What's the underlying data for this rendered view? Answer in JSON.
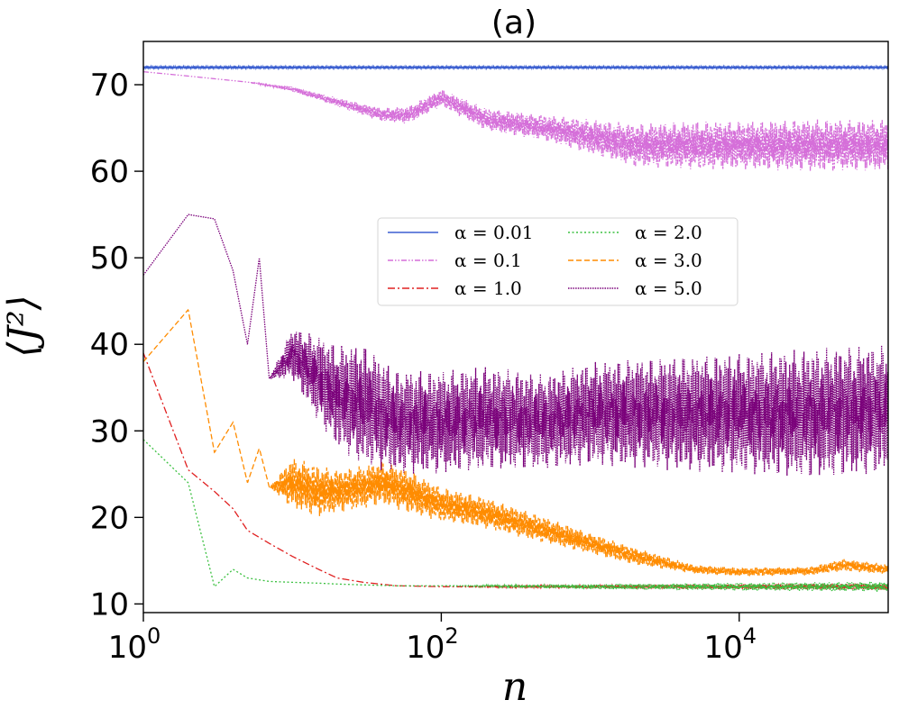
{
  "chart_data": {
    "type": "line",
    "title": "(a)",
    "xlabel": "n",
    "ylabel": "⟨J²⟩",
    "xscale": "log",
    "xlim": [
      1,
      100000
    ],
    "ylim": [
      9,
      75
    ],
    "x_ticks": [
      {
        "value": 1,
        "base": "10",
        "exp": "0"
      },
      {
        "value": 100,
        "base": "10",
        "exp": "2"
      },
      {
        "value": 10000,
        "base": "10",
        "exp": "4"
      }
    ],
    "y_ticks": [
      10,
      20,
      30,
      40,
      50,
      60,
      70
    ],
    "legend_position": "center",
    "series": [
      {
        "name": "α = 0.01",
        "color": "#3b5fd0",
        "style": "solid",
        "x": [
          1,
          100000
        ],
        "y": [
          72.0,
          72.0
        ],
        "band": [
          0.1,
          0.1
        ]
      },
      {
        "name": "α = 0.1",
        "color": "#d56fd9",
        "style": "dashdotdot",
        "x": [
          1,
          2,
          5,
          10,
          20,
          40,
          60,
          100,
          200,
          500,
          1000,
          2000,
          5000,
          10000,
          30000,
          100000
        ],
        "y": [
          71.5,
          71,
          70.3,
          69.5,
          68,
          66.5,
          66.5,
          68.5,
          66,
          65,
          64,
          63,
          63,
          63,
          63,
          63
        ],
        "band": [
          0,
          0,
          0,
          0.3,
          0.5,
          0.8,
          1,
          1,
          1.3,
          1.5,
          2,
          2.5,
          2.8,
          2.8,
          3,
          3
        ]
      },
      {
        "name": "α = 1.0",
        "color": "#e02020",
        "style": "dashdot",
        "x": [
          1,
          2,
          3,
          4,
          5,
          7,
          10,
          15,
          20,
          30,
          50,
          100,
          1000,
          100000
        ],
        "y": [
          39,
          25.5,
          23,
          21,
          18.5,
          17,
          15.5,
          14,
          13,
          12.5,
          12.1,
          12,
          12,
          12
        ],
        "band": [
          0,
          0,
          0,
          0,
          0,
          0,
          0,
          0,
          0,
          0,
          0,
          0,
          0.2,
          0.4
        ]
      },
      {
        "name": "α = 2.0",
        "color": "#3bc040",
        "style": "dotted",
        "x": [
          1,
          2,
          3,
          4,
          5,
          7,
          10,
          15,
          20,
          30,
          50,
          100,
          1000,
          100000
        ],
        "y": [
          29,
          24,
          12,
          14,
          13,
          12.6,
          12.5,
          12.4,
          12.3,
          12.2,
          12.1,
          12.1,
          12,
          12
        ],
        "band": [
          0,
          0,
          0,
          0,
          0,
          0,
          0,
          0,
          0,
          0,
          0,
          0,
          0.3,
          0.6
        ]
      },
      {
        "name": "α = 3.0",
        "color": "#ff8c00",
        "style": "dashed",
        "x": [
          1,
          2,
          3,
          4,
          5,
          6,
          7,
          10,
          15,
          20,
          30,
          40,
          60,
          100,
          200,
          500,
          1000,
          2000,
          5000,
          10000,
          30000,
          50000,
          100000
        ],
        "y": [
          38,
          44,
          27.5,
          31,
          24,
          28,
          23.5,
          24,
          23,
          23,
          23.5,
          24,
          23,
          21.5,
          20.5,
          18.5,
          17,
          15.5,
          14,
          13.7,
          13.8,
          14.5,
          14
        ],
        "band": [
          0,
          0,
          0,
          0,
          0,
          0,
          0,
          3,
          3,
          2.5,
          2.5,
          2.5,
          2.5,
          2,
          1.8,
          1.5,
          1.2,
          1,
          0.5,
          0.5,
          0.5,
          0.7,
          0.6
        ]
      },
      {
        "name": "α = 5.0",
        "color": "#7a007a",
        "style": "densedotted",
        "x": [
          1,
          2,
          3,
          4,
          5,
          6,
          7,
          10,
          15,
          20,
          30,
          50,
          100,
          200,
          500,
          1000,
          3000,
          10000,
          30000,
          100000
        ],
        "y": [
          48,
          55,
          54.5,
          48.5,
          40,
          50,
          36,
          39,
          36,
          34,
          33,
          31,
          31,
          31.5,
          31,
          32,
          32,
          32,
          32,
          32.5
        ],
        "band": [
          0,
          0,
          0,
          0,
          0,
          0,
          0,
          3,
          5,
          6,
          7,
          6,
          6,
          6,
          5.5,
          6,
          6.5,
          7,
          7.5,
          7.5
        ]
      }
    ]
  }
}
